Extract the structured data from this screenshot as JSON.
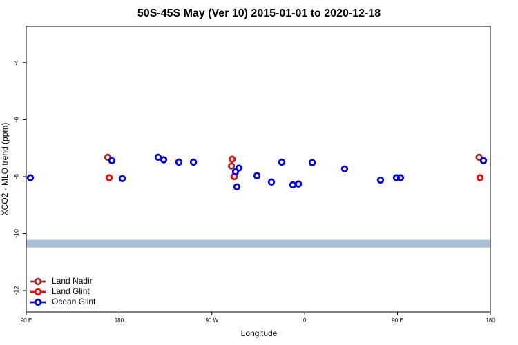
{
  "chart_data": {
    "type": "scatter",
    "title": "50S-45S May (Ver 10)   2015-01-01 to 2020-12-18",
    "x_label": "Longitude",
    "y_label": "XCO2 - MLO trend (ppm)",
    "xlim": [
      90,
      540
    ],
    "ylim": [
      -12.75,
      -2.72
    ],
    "xticks": [
      {
        "value": 90,
        "label": "90 E"
      },
      180,
      {
        "value": 270,
        "label": "90 W"
      },
      {
        "value": 360,
        "label": "0"
      },
      {
        "value": 450,
        "label": "90 E"
      },
      {
        "value": 540,
        "label": "180"
      }
    ],
    "yticks": [
      -4,
      -6,
      -8,
      -10,
      -12
    ],
    "legend": "bottom-left",
    "band": {
      "ymin": -10.49,
      "ymax": -10.22,
      "color": "#a9bfdc"
    },
    "series": [
      {
        "name": "Land Nadir",
        "color": "#a52a2a",
        "x": [
          169,
          289,
          529
        ],
        "values": [
          -7.32,
          -7.63,
          -7.32
        ]
      },
      {
        "name": "Land Glint",
        "color": "#ff0000",
        "x": [
          170.4,
          289.6,
          291.6,
          530
        ],
        "values": [
          -8.04,
          -7.39,
          -8.0,
          -8.04
        ]
      },
      {
        "name": "Ocean Glint",
        "color": "#0000ee",
        "x": [
          94.0,
          173.0,
          183.1,
          217.9,
          223.3,
          238.0,
          252.1,
          292.9,
          296.2,
          294.2,
          313.7,
          327.7,
          337.8,
          348.5,
          353.9,
          367.3,
          398.7,
          433.5,
          448.9,
          452.9,
          533.3
        ],
        "values": [
          -8.04,
          -7.44,
          -8.07,
          -7.32,
          -7.41,
          -7.49,
          -7.49,
          -7.83,
          -7.7,
          -8.36,
          -7.97,
          -8.19,
          -7.49,
          -8.29,
          -8.26,
          -7.51,
          -7.73,
          -8.12,
          -8.04,
          -8.04,
          -7.44
        ]
      }
    ]
  }
}
